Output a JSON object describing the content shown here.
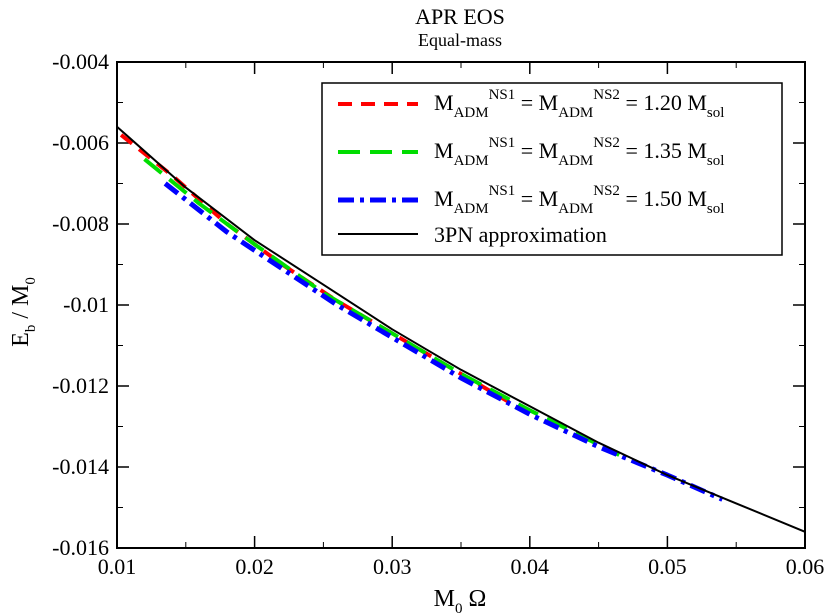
{
  "chart_data": {
    "type": "line",
    "title": "APR EOS",
    "subtitle": "Equal-mass",
    "xlabel": {
      "main": "M",
      "sub": "0",
      "tail": " Ω"
    },
    "ylabel": {
      "main": "E",
      "sub": "b",
      "tail": " / M",
      "sub2": "0"
    },
    "xlim": [
      0.01,
      0.06
    ],
    "ylim": [
      -0.016,
      -0.004
    ],
    "xticks": [
      0.01,
      0.02,
      0.03,
      0.04,
      0.05,
      0.06
    ],
    "xtick_labels": [
      "0.01",
      "0.02",
      "0.03",
      "0.04",
      "0.05",
      "0.06"
    ],
    "yticks": [
      -0.016,
      -0.014,
      -0.012,
      -0.01,
      -0.008,
      -0.006,
      -0.004
    ],
    "ytick_labels": [
      "-0.016",
      "-0.014",
      "-0.012",
      "-0.01",
      "-0.008",
      "-0.006",
      "-0.004"
    ],
    "legend_position": "top-right",
    "series": [
      {
        "name": "M_ADM^NS1 = M_ADM^NS2 = 1.20 M_sol",
        "legend": {
          "mass": "1.20"
        },
        "color": "#ff0000",
        "style": "dashed",
        "x": [
          0.0103,
          0.014,
          0.018,
          0.022,
          0.026,
          0.03,
          0.034,
          0.0385
        ],
        "y": [
          -0.0058,
          -0.0068,
          -0.008,
          -0.009,
          -0.0099,
          -0.0107,
          -0.0115,
          -0.0124
        ]
      },
      {
        "name": "M_ADM^NS1 = M_ADM^NS2 = 1.35 M_sol",
        "legend": {
          "mass": "1.35"
        },
        "color": "#00dd00",
        "style": "long-dashed",
        "x": [
          0.012,
          0.016,
          0.02,
          0.025,
          0.03,
          0.035,
          0.04,
          0.0465
        ],
        "y": [
          -0.0064,
          -0.0075,
          -0.0085,
          -0.0097,
          -0.0107,
          -0.0117,
          -0.0126,
          -0.0137
        ]
      },
      {
        "name": "M_ADM^NS1 = M_ADM^NS2 = 1.50 M_sol",
        "legend": {
          "mass": "1.50"
        },
        "color": "#0000ff",
        "style": "dash-dot",
        "x": [
          0.0135,
          0.018,
          0.022,
          0.026,
          0.03,
          0.035,
          0.04,
          0.045,
          0.05,
          0.054
        ],
        "y": [
          -0.007,
          -0.0082,
          -0.0091,
          -0.01,
          -0.0108,
          -0.0118,
          -0.0127,
          -0.0135,
          -0.0142,
          -0.0148
        ]
      },
      {
        "name": "3PN approximation",
        "legend": {
          "text": "3PN approximation"
        },
        "color": "#000000",
        "style": "solid",
        "x": [
          0.01,
          0.015,
          0.02,
          0.025,
          0.03,
          0.035,
          0.04,
          0.045,
          0.05,
          0.055,
          0.06
        ],
        "y": [
          -0.0056,
          -0.0071,
          -0.0084,
          -0.0095,
          -0.0106,
          -0.0116,
          -0.0125,
          -0.0134,
          -0.0142,
          -0.0149,
          -0.0156
        ]
      }
    ],
    "legend_parts": {
      "M": "M",
      "ADM": "ADM",
      "NS1": "NS1",
      "NS2": "NS2",
      "eq": "=",
      "sol": "sol",
      "msol": "M"
    }
  }
}
